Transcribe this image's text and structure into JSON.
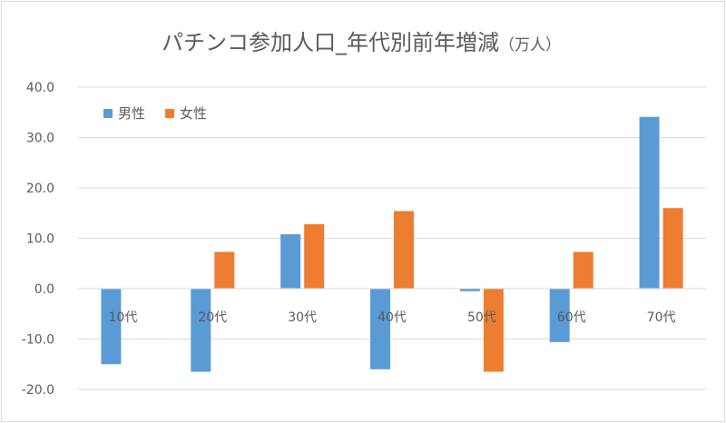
{
  "chart_data": {
    "type": "bar",
    "title": "パチンコ参加人口_年代別前年増減",
    "title_unit": "（万人）",
    "categories": [
      "10代",
      "20代",
      "30代",
      "40代",
      "50代",
      "60代",
      "70代"
    ],
    "series": [
      {
        "name": "男性",
        "color": "#5b9bd5",
        "values": [
          -15.0,
          -16.5,
          10.8,
          -16.0,
          -0.5,
          -10.6,
          34.1
        ]
      },
      {
        "name": "女性",
        "color": "#ed7d31",
        "values": [
          0.0,
          7.3,
          12.8,
          15.4,
          -16.5,
          7.3,
          16.0
        ]
      }
    ],
    "ylim": [
      -20,
      40
    ],
    "yticks": [
      40,
      30,
      20,
      10,
      0,
      -10,
      -20
    ],
    "ytick_labels": [
      "40.0",
      "30.0",
      "20.0",
      "10.0",
      "0.0",
      "-10.0",
      "-20.0"
    ],
    "grid": true,
    "legend_position": "top-left"
  }
}
